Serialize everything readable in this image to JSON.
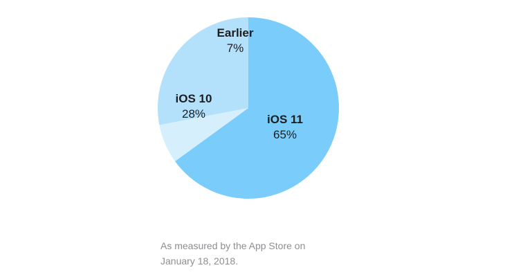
{
  "chart_data": {
    "type": "pie",
    "title": "",
    "slices": [
      {
        "label": "iOS 11",
        "value": 65,
        "value_label": "65%",
        "color": "#7acdfa"
      },
      {
        "label": "Earlier",
        "value": 7,
        "value_label": "7%",
        "color": "#d6effd"
      },
      {
        "label": "iOS 10",
        "value": 28,
        "value_label": "28%",
        "color": "#b3e0fb"
      }
    ],
    "start_angle_deg": 0,
    "direction": "clockwise",
    "legend": "none"
  },
  "caption": {
    "line1": "As measured by the App Store on",
    "line2": "January 18, 2018."
  }
}
